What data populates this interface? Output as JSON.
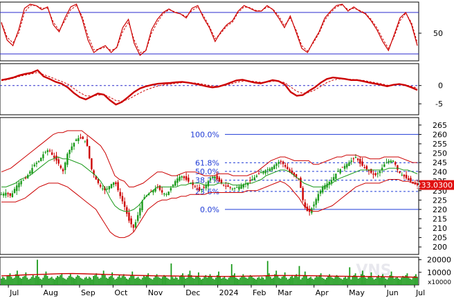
{
  "chart_data": [
    {
      "type": "line",
      "panel": "stochastic-oscillator",
      "ylim": [
        10,
        95
      ],
      "yticks": [
        50
      ],
      "reference_lines": [
        80,
        20
      ],
      "series": [
        {
          "style": "solid",
          "color": "#cc0000",
          "values": [
            65,
            40,
            32,
            55,
            86,
            92,
            90,
            84,
            88,
            62,
            52,
            72,
            88,
            92,
            70,
            40,
            22,
            28,
            32,
            22,
            30,
            58,
            70,
            35,
            18,
            25,
            55,
            70,
            80,
            85,
            80,
            78,
            72,
            86,
            90,
            72,
            58,
            38,
            52,
            62,
            68,
            82,
            90,
            86,
            82,
            82,
            90,
            84,
            72,
            58,
            75,
            52,
            28,
            22,
            38,
            52,
            72,
            82,
            90,
            92,
            82,
            88,
            82,
            78,
            68,
            55,
            38,
            25,
            48,
            72,
            80,
            62,
            32
          ]
        },
        {
          "style": "dashed",
          "color": "#cc0000",
          "values": [
            66,
            44,
            36,
            50,
            80,
            90,
            90,
            86,
            86,
            66,
            54,
            68,
            84,
            90,
            74,
            46,
            26,
            27,
            30,
            25,
            29,
            52,
            66,
            40,
            22,
            24,
            50,
            66,
            78,
            84,
            81,
            78,
            74,
            83,
            88,
            75,
            60,
            42,
            50,
            60,
            66,
            80,
            88,
            87,
            83,
            82,
            88,
            85,
            75,
            61,
            72,
            55,
            32,
            24,
            36,
            50,
            69,
            80,
            88,
            91,
            84,
            86,
            83,
            79,
            70,
            58,
            42,
            28,
            45,
            68,
            79,
            65,
            36
          ]
        }
      ]
    },
    {
      "type": "line",
      "panel": "macd",
      "ylim": [
        -8,
        6
      ],
      "yticks": [
        0,
        -5
      ],
      "reference_lines": [
        0
      ],
      "series": [
        {
          "style": "solid",
          "color": "#cc0000",
          "values": [
            1.5,
            1.8,
            2.2,
            2.8,
            3.2,
            3.5,
            4.2,
            2.5,
            1.8,
            1.0,
            0.5,
            -0.5,
            -2.0,
            -3.2,
            -3.8,
            -3.0,
            -2.2,
            -2.5,
            -4.0,
            -5.2,
            -4.5,
            -3.2,
            -1.8,
            -0.8,
            -0.2,
            0.2,
            0.5,
            0.6,
            0.7,
            0.9,
            1.0,
            0.8,
            0.5,
            0.2,
            -0.2,
            -0.5,
            -0.3,
            0.2,
            0.8,
            1.4,
            1.6,
            1.2,
            0.8,
            0.6,
            1.0,
            1.5,
            1.2,
            0.3,
            -1.8,
            -2.8,
            -2.6,
            -1.5,
            -0.5,
            0.8,
            1.8,
            2.2,
            2.0,
            1.8,
            1.5,
            1.5,
            1.2,
            0.8,
            0.5,
            0.2,
            -0.2,
            0.2,
            0.4,
            0.1,
            -0.5,
            -1.2
          ]
        },
        {
          "style": "dashed",
          "color": "#cc0000",
          "values": [
            1.3,
            1.6,
            2.0,
            2.5,
            2.9,
            3.2,
            3.6,
            3.0,
            2.4,
            1.7,
            1.1,
            0.4,
            -0.8,
            -1.9,
            -2.8,
            -2.9,
            -2.6,
            -2.5,
            -3.2,
            -4.1,
            -4.3,
            -3.8,
            -2.9,
            -2.0,
            -1.2,
            -0.6,
            -0.1,
            0.2,
            0.4,
            0.6,
            0.8,
            0.8,
            0.7,
            0.5,
            0.2,
            -0.1,
            -0.2,
            0.0,
            0.4,
            0.9,
            1.2,
            1.3,
            1.1,
            0.9,
            0.9,
            1.2,
            1.2,
            0.8,
            -0.4,
            -1.6,
            -2.1,
            -1.9,
            -1.2,
            -0.2,
            0.8,
            1.5,
            1.8,
            1.8,
            1.7,
            1.6,
            1.4,
            1.1,
            0.8,
            0.5,
            0.1,
            0.1,
            0.3,
            0.2,
            -0.2,
            -0.7
          ]
        }
      ]
    },
    {
      "type": "line",
      "panel": "price",
      "ylim": [
        196,
        269
      ],
      "yticks": [
        265,
        260,
        255,
        250,
        245,
        240,
        235,
        230,
        225,
        220,
        215,
        210,
        205,
        200
      ],
      "last_price": {
        "value": 233.03,
        "label": "233.0300"
      },
      "fibonacci": [
        {
          "label": "100.0%",
          "value": 260.0
        },
        {
          "label": "61.8%",
          "value": 244.9
        },
        {
          "label": "50.0%",
          "value": 240.3
        },
        {
          "label": "38.2%",
          "value": 235.6
        },
        {
          "label": "23.6%",
          "value": 229.6
        },
        {
          "label": "0.0%",
          "value": 220.0
        }
      ],
      "close": [
        228,
        229,
        227,
        232,
        235,
        236,
        240,
        244,
        246,
        250,
        252,
        248,
        245,
        240,
        250,
        254,
        258,
        258,
        256,
        242,
        236,
        232,
        230,
        233,
        235,
        228,
        222,
        214,
        210,
        218,
        226,
        228,
        230,
        232,
        229,
        228,
        232,
        236,
        238,
        236,
        234,
        232,
        230,
        232,
        236,
        238,
        235,
        233,
        232,
        231,
        232,
        233,
        234,
        236,
        238,
        240,
        241,
        242,
        244,
        246,
        243,
        240,
        238,
        236,
        222,
        218,
        222,
        228,
        232,
        234,
        236,
        240,
        242,
        244,
        246,
        248,
        244,
        242,
        240,
        238,
        240,
        244,
        246,
        246,
        240,
        238,
        236,
        234,
        233
      ],
      "bollinger_upper": [
        240,
        241,
        242,
        244,
        246,
        248,
        250,
        252,
        254,
        256,
        258,
        260,
        261,
        261,
        262,
        262,
        262,
        262,
        260,
        258,
        256,
        254,
        250,
        244,
        238,
        236,
        235,
        232,
        232,
        233,
        234,
        236,
        238,
        240,
        240,
        239,
        238,
        238,
        239,
        240,
        240,
        240,
        239,
        238,
        238,
        238,
        239,
        239,
        239,
        238,
        238,
        238,
        238,
        239,
        240,
        242,
        244,
        246,
        247,
        248,
        248,
        247,
        246,
        246,
        246,
        246,
        244,
        244,
        245,
        246,
        247,
        248,
        248,
        249,
        249,
        249,
        248,
        248,
        247,
        247,
        247,
        248,
        248,
        248,
        248,
        247,
        246,
        245,
        245
      ],
      "bollinger_lower": [
        224,
        224,
        224,
        224,
        225,
        226,
        228,
        230,
        232,
        233,
        234,
        234,
        234,
        233,
        232,
        230,
        228,
        226,
        224,
        222,
        220,
        216,
        212,
        208,
        206,
        205,
        205,
        206,
        208,
        212,
        216,
        220,
        222,
        224,
        225,
        225,
        226,
        226,
        227,
        227,
        228,
        228,
        228,
        228,
        229,
        229,
        229,
        229,
        229,
        229,
        229,
        229,
        230,
        230,
        230,
        231,
        232,
        233,
        234,
        235,
        234,
        232,
        229,
        226,
        222,
        220,
        219,
        219,
        220,
        221,
        222,
        224,
        226,
        228,
        230,
        232,
        233,
        234,
        234,
        234,
        234,
        235,
        236,
        236,
        236,
        235,
        235,
        234,
        234
      ],
      "ma20": [
        232,
        232,
        233,
        234,
        236,
        237,
        238,
        240,
        242,
        244,
        246,
        247,
        248,
        247,
        247,
        246,
        245,
        244,
        242,
        240,
        238,
        235,
        231,
        226,
        222,
        220,
        219,
        219,
        220,
        222,
        225,
        228,
        230,
        232,
        232,
        232,
        232,
        232,
        233,
        233,
        234,
        234,
        234,
        233,
        233,
        233,
        234,
        234,
        234,
        233,
        233,
        233,
        234,
        234,
        235,
        236,
        238,
        239,
        240,
        241,
        241,
        240,
        238,
        236,
        234,
        233,
        232,
        232,
        232,
        233,
        234,
        236,
        237,
        238,
        239,
        240,
        241,
        241,
        241,
        241,
        241,
        241,
        242,
        242,
        242,
        241,
        241,
        240,
        239
      ]
    },
    {
      "type": "bar",
      "panel": "volume",
      "unit": "x10000",
      "ylim": [
        0,
        22000
      ],
      "yticks": [
        {
          "value": 20000,
          "label": "20000"
        },
        {
          "value": 10000,
          "label": "10000"
        }
      ],
      "volume_pattern": [
        5,
        7,
        6,
        4,
        8,
        9,
        11,
        7,
        5,
        6,
        10,
        14,
        9,
        6,
        5,
        7,
        8,
        12,
        6,
        4,
        5,
        7,
        9,
        6,
        8,
        10,
        7,
        5,
        4,
        6,
        9,
        13,
        8,
        5,
        6,
        7,
        5,
        4,
        6,
        8,
        7,
        9,
        11,
        6,
        5,
        4,
        6,
        8,
        10,
        7,
        6,
        5,
        7,
        9,
        8,
        6,
        5,
        4,
        6,
        7
      ],
      "spikes": [
        {
          "index": 52,
          "value": 20000
        },
        {
          "index": 245,
          "value": 17000
        },
        {
          "index": 332,
          "value": 16500
        },
        {
          "index": 382,
          "value": 19000
        },
        {
          "index": 428,
          "value": 15000
        },
        {
          "index": 500,
          "value": 14000
        }
      ],
      "volume_ma": [
        7200,
        7500,
        8000,
        8200,
        8600,
        8900,
        9000,
        8800,
        8500,
        8200,
        7900,
        7600,
        7400,
        7200,
        7100,
        7000,
        6900,
        6800,
        6700,
        6700,
        6800,
        7000,
        7200,
        7400,
        7500,
        7400,
        7300,
        7100,
        6900,
        6800,
        6700,
        6600,
        6500,
        6400,
        6300,
        6000
      ]
    }
  ],
  "x_axis": {
    "months": [
      {
        "label": "Jul",
        "pos": 0.02
      },
      {
        "label": "Aug",
        "pos": 0.1
      },
      {
        "label": "Sep",
        "pos": 0.19
      },
      {
        "label": "Oct",
        "pos": 0.27
      },
      {
        "label": "Nov",
        "pos": 0.35
      },
      {
        "label": "Dec",
        "pos": 0.44
      },
      {
        "label": "2024",
        "pos": 0.52
      },
      {
        "label": "Feb",
        "pos": 0.6
      },
      {
        "label": "Mar",
        "pos": 0.66
      },
      {
        "label": "Apr",
        "pos": 0.75
      },
      {
        "label": "May",
        "pos": 0.83
      },
      {
        "label": "Jun",
        "pos": 0.92
      },
      {
        "label": "Jul",
        "pos": 0.99
      }
    ]
  },
  "colors": {
    "panel_border": "#000000",
    "reference_line": "#2a2acc",
    "indicator": "#cc0000",
    "candle_up": "#1a9a1a",
    "candle_down": "#cc0000",
    "bollinger": "#cc0000",
    "ma20": "#1a9a1a",
    "fib_line": "#1f3bd6",
    "volume_bar": "#1a9a1a",
    "volume_ma": "#cc0000",
    "price_tag": "#e01010"
  },
  "watermark": "VNS"
}
